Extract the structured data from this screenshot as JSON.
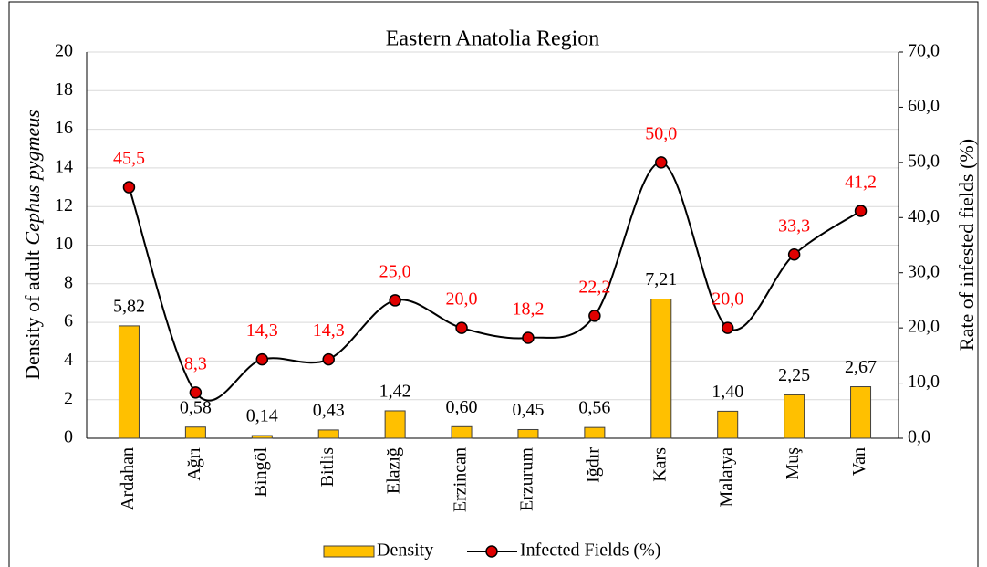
{
  "chart_data": {
    "type": "bar",
    "title": "Eastern Anatolia Region",
    "ylabel": [
      "Density of adult",
      "Cephus pygmeus"
    ],
    "y2label": "Rate of infested fields (%)",
    "categories": [
      "Ardahan",
      "Ağrı",
      "Bingöl",
      "Bitlis",
      "Elazığ",
      "Erzincan",
      "Erzurum",
      "Iğdır",
      "Kars",
      "Malatya",
      "Muş",
      "Van"
    ],
    "series": [
      {
        "name": "Density",
        "type": "bar",
        "color": "#ffc000",
        "values": [
          5.82,
          0.58,
          0.14,
          0.43,
          1.42,
          0.6,
          0.45,
          0.56,
          7.21,
          1.4,
          2.25,
          2.67
        ],
        "value_labels": [
          "5,82",
          "0,58",
          "0,14",
          "0,43",
          "1,42",
          "0,60",
          "0,45",
          "0,56",
          "7,21",
          "1,40",
          "2,25",
          "2,67"
        ]
      },
      {
        "name": "Infected Fields (%)",
        "type": "line",
        "axis": "y2",
        "color": "#e00000",
        "values": [
          45.5,
          8.3,
          14.3,
          14.3,
          25.0,
          20.0,
          18.2,
          22.2,
          50.0,
          20.0,
          33.3,
          41.2
        ],
        "value_labels": [
          "45,5",
          "8,3",
          "14,3",
          "14,3",
          "25,0",
          "20,0",
          "18,2",
          "22,2",
          "50,0",
          "20,0",
          "33,3",
          "41,2"
        ]
      }
    ],
    "ylim": [
      0,
      20
    ],
    "yticks": [
      0,
      2,
      4,
      6,
      8,
      10,
      12,
      14,
      16,
      18,
      20
    ],
    "y2lim": [
      0,
      70
    ],
    "y2ticks": [
      {
        "value": 0,
        "label": "0,0"
      },
      {
        "value": 10,
        "label": "10,0"
      },
      {
        "value": 20,
        "label": "20,0"
      },
      {
        "value": 30,
        "label": "30,0"
      },
      {
        "value": 40,
        "label": "40,0"
      },
      {
        "value": 50,
        "label": "50,0"
      },
      {
        "value": 60,
        "label": "60,0"
      },
      {
        "value": 70,
        "label": "70,0"
      }
    ],
    "grid": true,
    "legend": "bottom"
  }
}
